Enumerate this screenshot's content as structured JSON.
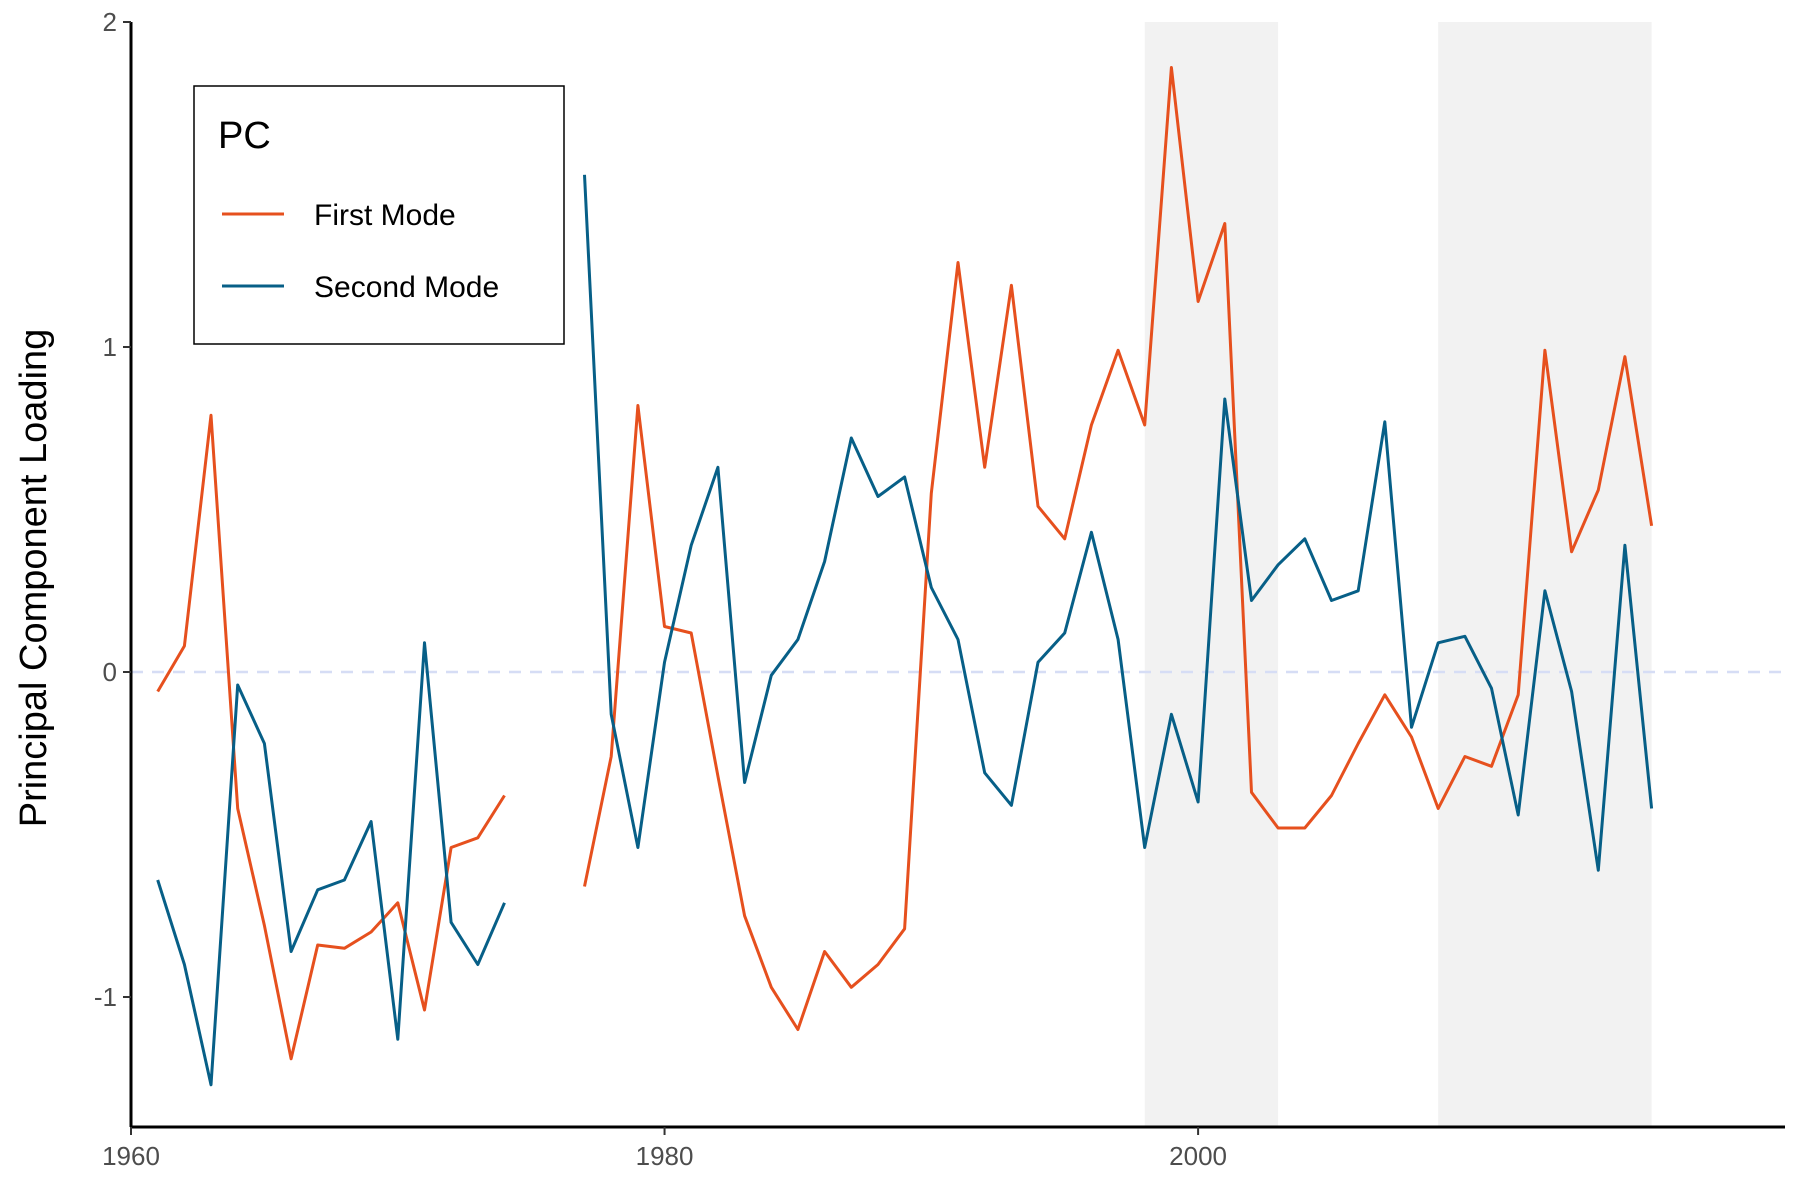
{
  "chart_data": {
    "type": "line",
    "xlabel": "",
    "ylabel": "Principal Component Loading",
    "xlim": [
      1960,
      2022
    ],
    "ylim": [
      -1.4,
      2.0
    ],
    "x_ticks": [
      1960,
      1980,
      2000
    ],
    "x_tick_labels": [
      "1960",
      "1980",
      "2000"
    ],
    "y_ticks": [
      -1,
      0,
      1,
      2
    ],
    "y_tick_labels": [
      "-1",
      "0",
      "1",
      "2"
    ],
    "reference_line": {
      "y": 0,
      "style": "dashed",
      "color": "#d6ddf5"
    },
    "shaded_periods": [
      [
        1998,
        2003
      ],
      [
        2009,
        2017
      ]
    ],
    "shade_color": "#f2f2f2",
    "grid": false,
    "legend": {
      "title": "PC",
      "position": "top-left"
    },
    "series": [
      {
        "name": "First Mode",
        "color": "#e6501e",
        "points": [
          [
            1961,
            -0.06
          ],
          [
            1962,
            0.08
          ],
          [
            1963,
            0.79
          ],
          [
            1964,
            -0.42
          ],
          [
            1965,
            -0.78
          ],
          [
            1966,
            -1.19
          ],
          [
            1967,
            -0.84
          ],
          [
            1968,
            -0.85
          ],
          [
            1969,
            -0.8
          ],
          [
            1970,
            -0.71
          ],
          [
            1971,
            -1.04
          ],
          [
            1972,
            -0.54
          ],
          [
            1973,
            -0.51
          ],
          [
            1974,
            -0.38
          ],
          null,
          [
            1977,
            -0.66
          ],
          [
            1978,
            -0.26
          ],
          [
            1979,
            0.82
          ],
          [
            1980,
            0.14
          ],
          [
            1981,
            0.12
          ],
          [
            1982,
            -0.32
          ],
          [
            1983,
            -0.75
          ],
          [
            1984,
            -0.97
          ],
          [
            1985,
            -1.1
          ],
          [
            1986,
            -0.86
          ],
          [
            1987,
            -0.97
          ],
          [
            1988,
            -0.9
          ],
          [
            1989,
            -0.79
          ],
          [
            1990,
            0.55
          ],
          [
            1991,
            1.26
          ],
          [
            1992,
            0.63
          ],
          [
            1993,
            1.19
          ],
          [
            1994,
            0.51
          ],
          [
            1995,
            0.41
          ],
          [
            1996,
            0.76
          ],
          [
            1997,
            0.99
          ],
          [
            1998,
            0.76
          ],
          [
            1999,
            1.86
          ],
          [
            2000,
            1.14
          ],
          [
            2001,
            1.38
          ],
          [
            2002,
            -0.37
          ],
          [
            2003,
            -0.48
          ],
          [
            2004,
            -0.48
          ],
          [
            2005,
            -0.38
          ],
          [
            2006,
            -0.22
          ],
          [
            2007,
            -0.07
          ],
          [
            2008,
            -0.2
          ],
          [
            2009,
            -0.42
          ],
          [
            2010,
            -0.26
          ],
          [
            2011,
            -0.29
          ],
          [
            2012,
            -0.07
          ],
          [
            2013,
            0.99
          ],
          [
            2014,
            0.37
          ],
          [
            2015,
            0.56
          ],
          [
            2016,
            0.97
          ],
          [
            2017,
            0.45
          ]
        ]
      },
      {
        "name": "Second Mode",
        "color": "#075f87",
        "points": [
          [
            1961,
            -0.64
          ],
          [
            1962,
            -0.9
          ],
          [
            1963,
            -1.27
          ],
          [
            1964,
            -0.04
          ],
          [
            1965,
            -0.22
          ],
          [
            1966,
            -0.86
          ],
          [
            1967,
            -0.67
          ],
          [
            1968,
            -0.64
          ],
          [
            1969,
            -0.46
          ],
          [
            1970,
            -1.13
          ],
          [
            1971,
            0.09
          ],
          [
            1972,
            -0.77
          ],
          [
            1973,
            -0.9
          ],
          [
            1974,
            -0.71
          ],
          null,
          [
            1977,
            1.53
          ],
          [
            1978,
            -0.13
          ],
          [
            1979,
            -0.54
          ],
          [
            1980,
            0.03
          ],
          [
            1981,
            0.39
          ],
          [
            1982,
            0.63
          ],
          [
            1983,
            -0.34
          ],
          [
            1984,
            -0.01
          ],
          [
            1985,
            0.1
          ],
          [
            1986,
            0.34
          ],
          [
            1987,
            0.72
          ],
          [
            1988,
            0.54
          ],
          [
            1989,
            0.6
          ],
          [
            1990,
            0.26
          ],
          [
            1991,
            0.1
          ],
          [
            1992,
            -0.31
          ],
          [
            1993,
            -0.41
          ],
          [
            1994,
            0.03
          ],
          [
            1995,
            0.12
          ],
          [
            1996,
            0.43
          ],
          [
            1997,
            0.1
          ],
          [
            1998,
            -0.54
          ],
          [
            1999,
            -0.13
          ],
          [
            2000,
            -0.4
          ],
          [
            2001,
            0.84
          ],
          [
            2002,
            0.22
          ],
          [
            2003,
            0.33
          ],
          [
            2004,
            0.41
          ],
          [
            2005,
            0.22
          ],
          [
            2006,
            0.25
          ],
          [
            2007,
            0.77
          ],
          [
            2008,
            -0.17
          ],
          [
            2009,
            0.09
          ],
          [
            2010,
            0.11
          ],
          [
            2011,
            -0.05
          ],
          [
            2012,
            -0.44
          ],
          [
            2013,
            0.25
          ],
          [
            2014,
            -0.06
          ],
          [
            2015,
            -0.61
          ],
          [
            2016,
            0.39
          ],
          [
            2017,
            -0.42
          ]
        ]
      }
    ]
  }
}
